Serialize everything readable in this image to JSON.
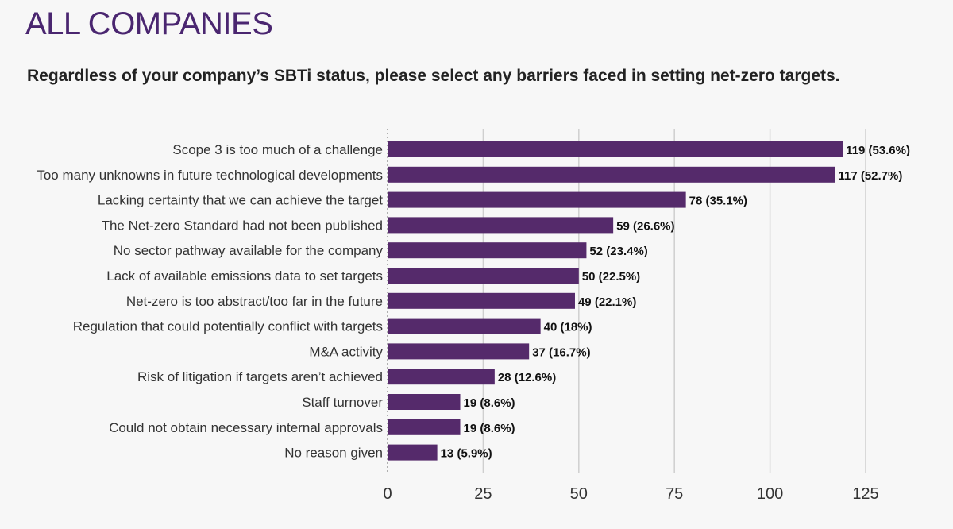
{
  "header": {
    "title": "ALL COMPANIES",
    "subtitle": "Regardless of your company’s SBTi status, please select any barriers faced in setting net-zero targets."
  },
  "colors": {
    "bar": "#552a6b",
    "title": "#4a2670",
    "grid": "#cfcfcf"
  },
  "chart_data": {
    "type": "bar",
    "orientation": "horizontal",
    "title": "ALL COMPANIES",
    "subtitle": "Regardless of your company’s SBTi status, please select any barriers faced in setting net-zero targets.",
    "categories": [
      "Scope 3 is too much of a challenge",
      "Too many unknowns in future technological developments",
      "Lacking certainty that we can achieve the target",
      "The Net-zero Standard had not been published",
      "No sector pathway available for the company",
      "Lack of available emissions data to set targets",
      "Net-zero is too abstract/too far in the future",
      "Regulation that could potentially conflict with targets",
      "M&A activity",
      "Risk of litigation if targets aren’t achieved",
      "Staff turnover",
      "Could not obtain necessary internal approvals",
      "No reason given"
    ],
    "values": [
      119,
      117,
      78,
      59,
      52,
      50,
      49,
      40,
      37,
      28,
      19,
      19,
      13
    ],
    "data_labels": [
      "119 (53.6%)",
      "117 (52.7%)",
      "78 (35.1%)",
      "59 (26.6%)",
      "52 (23.4%)",
      "50 (22.5%)",
      "49 (22.1%)",
      "40 (18%)",
      "37 (16.7%)",
      "28 (12.6%)",
      "19 (8.6%)",
      "19 (8.6%)",
      "13 (5.9%)"
    ],
    "xlim": [
      0,
      125
    ],
    "xticks": [
      0,
      25,
      50,
      75,
      100,
      125
    ],
    "xtick_labels": [
      "0",
      "25",
      "50",
      "75",
      "100",
      "125"
    ],
    "grid": true,
    "xlabel": "",
    "ylabel": ""
  }
}
